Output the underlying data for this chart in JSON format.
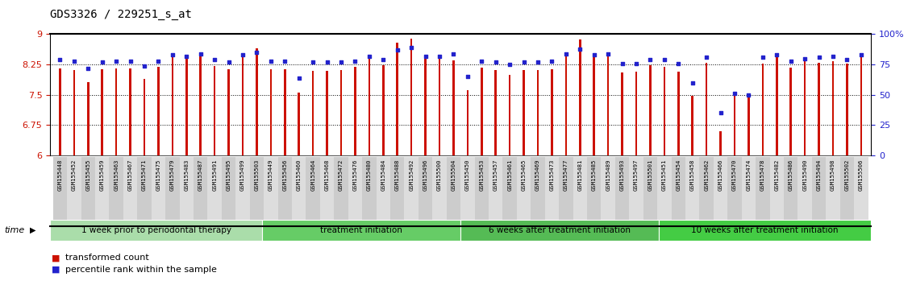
{
  "title": "GDS3326 / 229251_s_at",
  "ylim_left": [
    6,
    9
  ],
  "ylim_right": [
    0,
    100
  ],
  "yticks_left": [
    6,
    6.75,
    7.5,
    8.25,
    9
  ],
  "yticks_right": [
    0,
    25,
    50,
    75,
    100
  ],
  "ytick_labels_right": [
    "0",
    "25",
    "50",
    "75",
    "100%"
  ],
  "bar_color": "#cc1100",
  "dot_color": "#2222cc",
  "samples": [
    "GSM155448",
    "GSM155452",
    "GSM155455",
    "GSM155459",
    "GSM155463",
    "GSM155467",
    "GSM155471",
    "GSM155475",
    "GSM155479",
    "GSM155483",
    "GSM155487",
    "GSM155491",
    "GSM155495",
    "GSM155499",
    "GSM155503",
    "GSM155449",
    "GSM155456",
    "GSM155460",
    "GSM155464",
    "GSM155468",
    "GSM155472",
    "GSM155476",
    "GSM155480",
    "GSM155484",
    "GSM155488",
    "GSM155492",
    "GSM155496",
    "GSM155500",
    "GSM155504",
    "GSM155450",
    "GSM155453",
    "GSM155457",
    "GSM155461",
    "GSM155465",
    "GSM155469",
    "GSM155473",
    "GSM155477",
    "GSM155481",
    "GSM155485",
    "GSM155489",
    "GSM155493",
    "GSM155497",
    "GSM155501",
    "GSM155451",
    "GSM155454",
    "GSM155458",
    "GSM155462",
    "GSM155466",
    "GSM155470",
    "GSM155474",
    "GSM155478",
    "GSM155482",
    "GSM155486",
    "GSM155490",
    "GSM155494",
    "GSM155498",
    "GSM155502",
    "GSM155506"
  ],
  "bar_values": [
    8.15,
    8.12,
    7.82,
    8.14,
    8.15,
    8.15,
    7.9,
    8.19,
    8.45,
    8.46,
    8.52,
    8.22,
    8.14,
    8.49,
    8.65,
    8.14,
    8.14,
    7.55,
    8.1,
    8.1,
    8.12,
    8.19,
    8.5,
    8.24,
    8.8,
    8.88,
    8.42,
    8.4,
    8.36,
    7.62,
    8.17,
    8.11,
    8.0,
    8.11,
    8.11,
    8.14,
    8.52,
    8.87,
    8.52,
    8.52,
    8.05,
    8.07,
    8.24,
    8.2,
    8.08,
    7.48,
    8.3,
    6.59,
    7.51,
    7.48,
    8.28,
    8.52,
    8.18,
    8.34,
    8.3,
    8.34,
    8.28,
    8.48
  ],
  "dot_values": [
    79,
    78,
    72,
    77,
    78,
    78,
    74,
    78,
    83,
    82,
    84,
    79,
    77,
    83,
    85,
    78,
    78,
    64,
    77,
    77,
    77,
    78,
    82,
    79,
    87,
    89,
    82,
    82,
    84,
    65,
    78,
    77,
    75,
    77,
    77,
    78,
    84,
    88,
    83,
    84,
    76,
    76,
    79,
    79,
    76,
    60,
    81,
    35,
    51,
    50,
    81,
    83,
    78,
    80,
    81,
    82,
    79,
    83
  ],
  "groups": [
    {
      "label": "1 week prior to periodontal therapy",
      "start": 0,
      "end": 15,
      "color": "#aaddaa"
    },
    {
      "label": "treatment initiation",
      "start": 15,
      "end": 29,
      "color": "#66cc66"
    },
    {
      "label": "6 weeks after treatment initiation",
      "start": 29,
      "end": 43,
      "color": "#55bb55"
    },
    {
      "label": "10 weeks after treatment initiation",
      "start": 43,
      "end": 58,
      "color": "#44cc44"
    }
  ],
  "bg_color": "#ffffff",
  "tick_bg_even": "#cccccc",
  "tick_bg_odd": "#dddddd"
}
